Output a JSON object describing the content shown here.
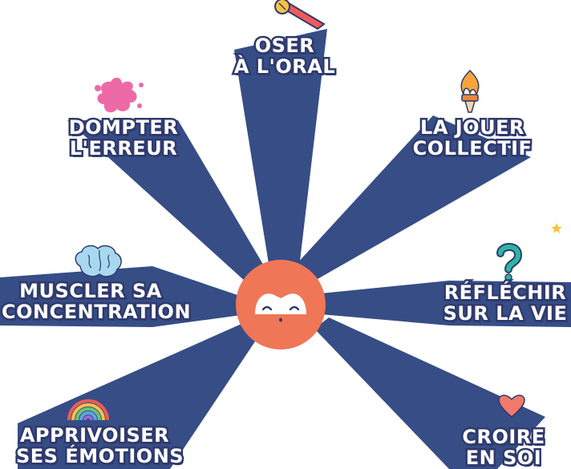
{
  "colors": {
    "ray": "#364d86",
    "center_circle": "#ef7657",
    "label_outline": "#2f3a6d"
  },
  "skills": [
    {
      "line1": "OSER",
      "line2": "À L'ORAL",
      "icon": "microphone-icon"
    },
    {
      "line1": "LA JOUER",
      "line2": "COLLECTIF",
      "icon": "torch-icon"
    },
    {
      "line1": "RÉFLÉCHIR",
      "line2": "SUR LA VIE",
      "icon": "question-mark-icon"
    },
    {
      "line1": "CROIRE",
      "line2": "EN SOI",
      "icon": "heart-icon"
    },
    {
      "line1": "APPRIVOISER",
      "line2": "SES ÉMOTIONS",
      "icon": "rainbow-icon"
    },
    {
      "line1": "MUSCLER SA",
      "line2": "CONCENTRATION",
      "icon": "brain-icon"
    },
    {
      "line1": "DOMPTER",
      "line2": "L'ERREUR",
      "icon": "paint-splash-icon"
    }
  ]
}
